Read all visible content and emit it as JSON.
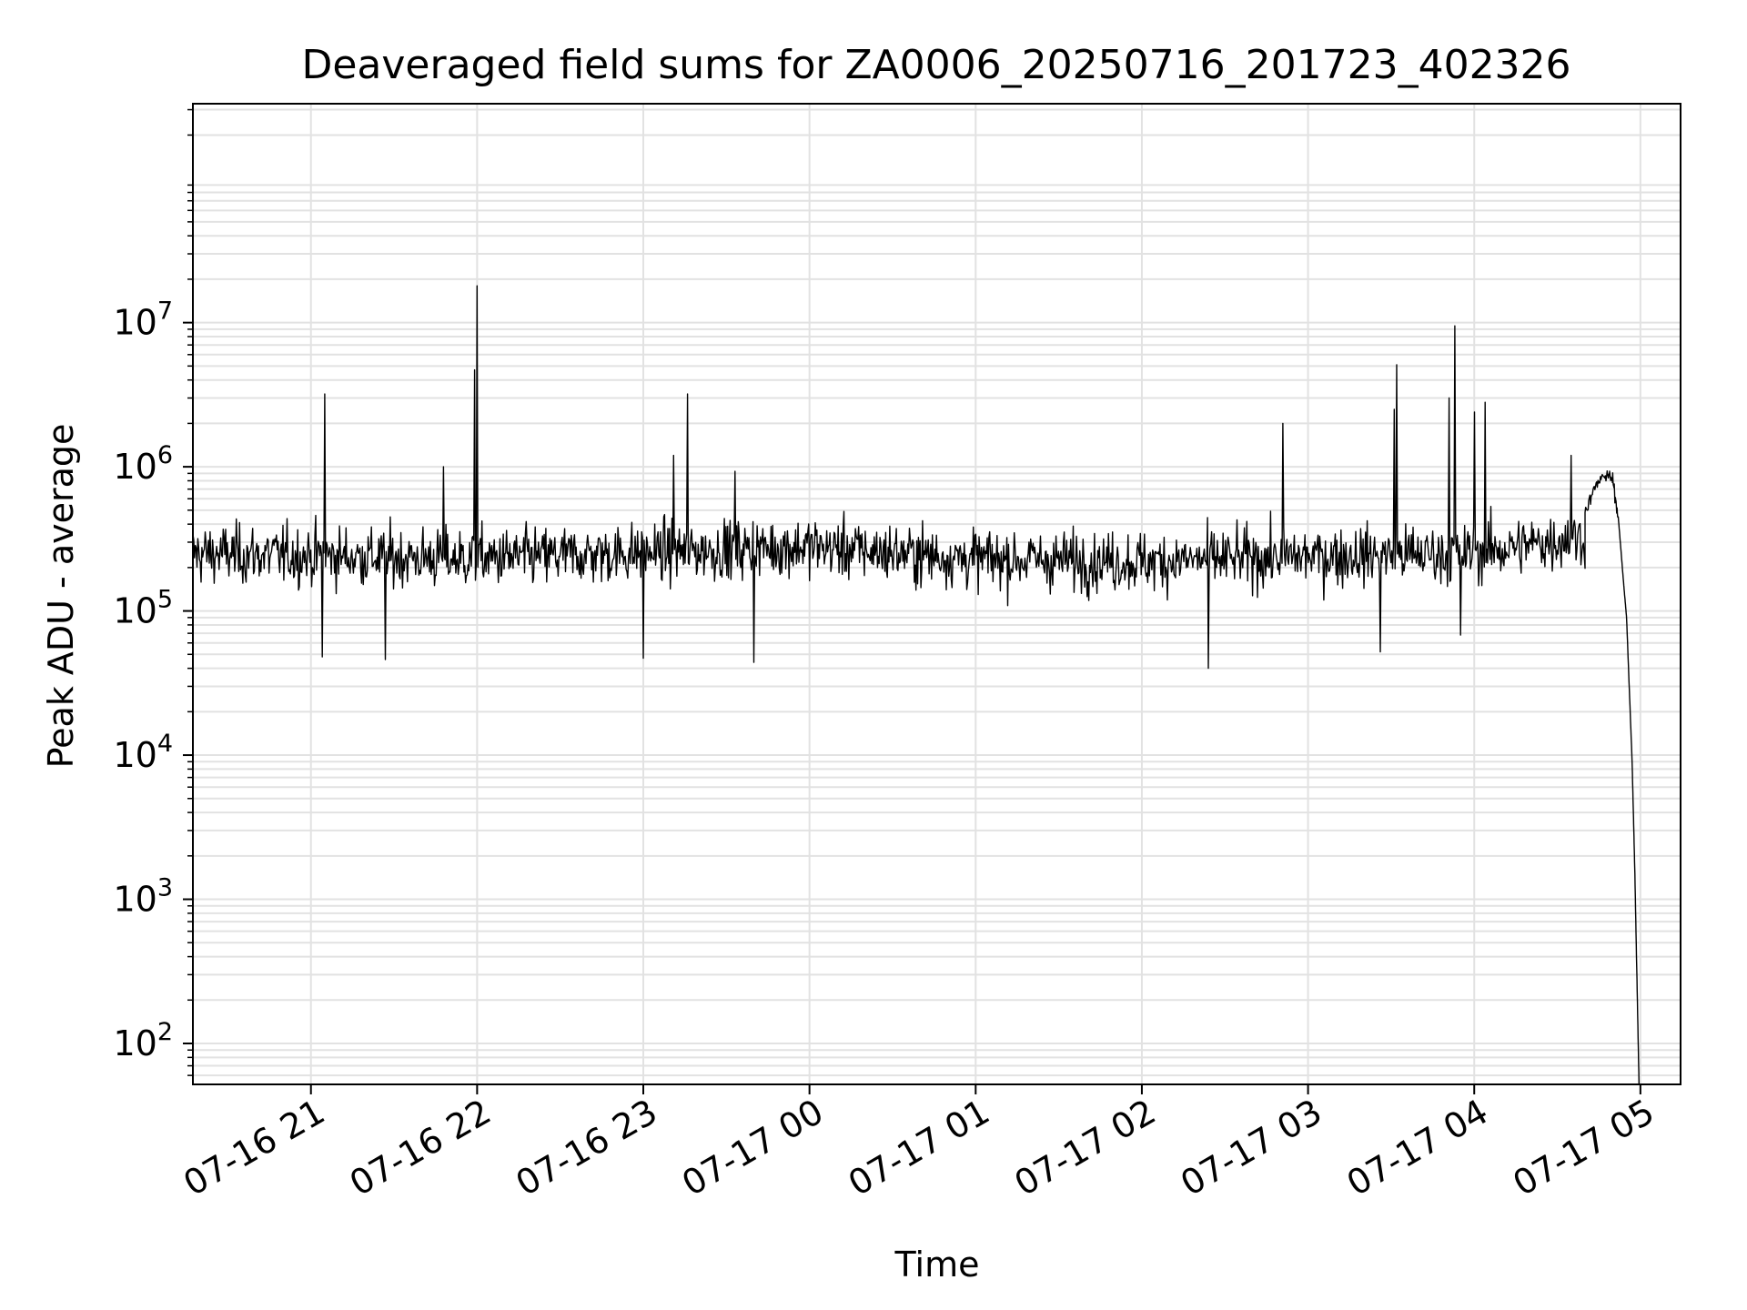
{
  "chart_data": {
    "type": "line",
    "title": "Deaveraged field sums for ZA0006_20250716_201723_402326",
    "xlabel": "Time",
    "ylabel": "Peak ADU - average",
    "y_scale": "log",
    "ylim": [
      52,
      330000000
    ],
    "xlim": [
      "2025-07-16T20:17:23",
      "2025-07-17T05:14:30"
    ],
    "grid": true,
    "x_ticks": [
      "07-16 21",
      "07-16 22",
      "07-16 23",
      "07-17 00",
      "07-17 01",
      "07-17 02",
      "07-17 03",
      "07-17 04",
      "07-17 05"
    ],
    "y_ticks": [
      {
        "base": "10",
        "exp": "2",
        "value": 100
      },
      {
        "base": "10",
        "exp": "3",
        "value": 1000
      },
      {
        "base": "10",
        "exp": "4",
        "value": 10000
      },
      {
        "base": "10",
        "exp": "5",
        "value": 100000
      },
      {
        "base": "10",
        "exp": "6",
        "value": 1000000
      },
      {
        "base": "10",
        "exp": "7",
        "value": 10000000
      }
    ],
    "line_color": "#000000",
    "baseline_segments": [
      {
        "t": "2025-07-16T20:17:23",
        "y": 250000
      },
      {
        "t": "2025-07-16T22:00:00",
        "y": 230000
      },
      {
        "t": "2025-07-17T00:00:00",
        "y": 280000
      },
      {
        "t": "2025-07-17T01:00:00",
        "y": 230000
      },
      {
        "t": "2025-07-17T02:00:00",
        "y": 220000
      },
      {
        "t": "2025-07-17T03:00:00",
        "y": 240000
      },
      {
        "t": "2025-07-17T04:00:00",
        "y": 250000
      },
      {
        "t": "2025-07-17T04:35:00",
        "y": 320000
      }
    ],
    "spikes": [
      {
        "t": "2025-07-16T21:05:00",
        "y": 3200000
      },
      {
        "t": "2025-07-16T21:48:00",
        "y": 1000000
      },
      {
        "t": "2025-07-16T21:59:00",
        "y": 4700000
      },
      {
        "t": "2025-07-16T22:00:00",
        "y": 18000000
      },
      {
        "t": "2025-07-16T23:11:00",
        "y": 1200000
      },
      {
        "t": "2025-07-16T23:16:00",
        "y": 3200000
      },
      {
        "t": "2025-07-16T23:33:00",
        "y": 930000
      },
      {
        "t": "2025-07-17T02:51:00",
        "y": 2000000
      },
      {
        "t": "2025-07-17T03:31:00",
        "y": 2500000
      },
      {
        "t": "2025-07-17T03:32:00",
        "y": 5100000
      },
      {
        "t": "2025-07-17T03:51:00",
        "y": 3000000
      },
      {
        "t": "2025-07-17T03:53:00",
        "y": 9500000
      },
      {
        "t": "2025-07-17T04:00:00",
        "y": 2400000
      },
      {
        "t": "2025-07-17T04:04:00",
        "y": 2800000
      },
      {
        "t": "2025-07-17T04:35:00",
        "y": 1200000
      }
    ],
    "dips": [
      {
        "t": "2025-07-16T21:04:00",
        "y": 48000
      },
      {
        "t": "2025-07-16T21:27:00",
        "y": 46000
      },
      {
        "t": "2025-07-16T23:00:00",
        "y": 47000
      },
      {
        "t": "2025-07-16T23:40:00",
        "y": 44000
      },
      {
        "t": "2025-07-17T02:24:00",
        "y": 40000
      },
      {
        "t": "2025-07-17T03:26:00",
        "y": 52000
      },
      {
        "t": "2025-07-17T03:55:00",
        "y": 68000
      }
    ],
    "final_hump": [
      {
        "t": "2025-07-17T04:40:00",
        "y": 480000
      },
      {
        "t": "2025-07-17T04:44:00",
        "y": 750000
      },
      {
        "t": "2025-07-17T04:48:00",
        "y": 900000
      },
      {
        "t": "2025-07-17T04:50:00",
        "y": 800000
      },
      {
        "t": "2025-07-17T04:52:00",
        "y": 450000
      },
      {
        "t": "2025-07-17T04:54:00",
        "y": 150000
      },
      {
        "t": "2025-07-17T04:55:00",
        "y": 90000
      },
      {
        "t": "2025-07-17T04:57:00",
        "y": 9000
      },
      {
        "t": "2025-07-17T04:58:00",
        "y": 1500
      },
      {
        "t": "2025-07-17T04:59:30",
        "y": 52
      }
    ]
  }
}
